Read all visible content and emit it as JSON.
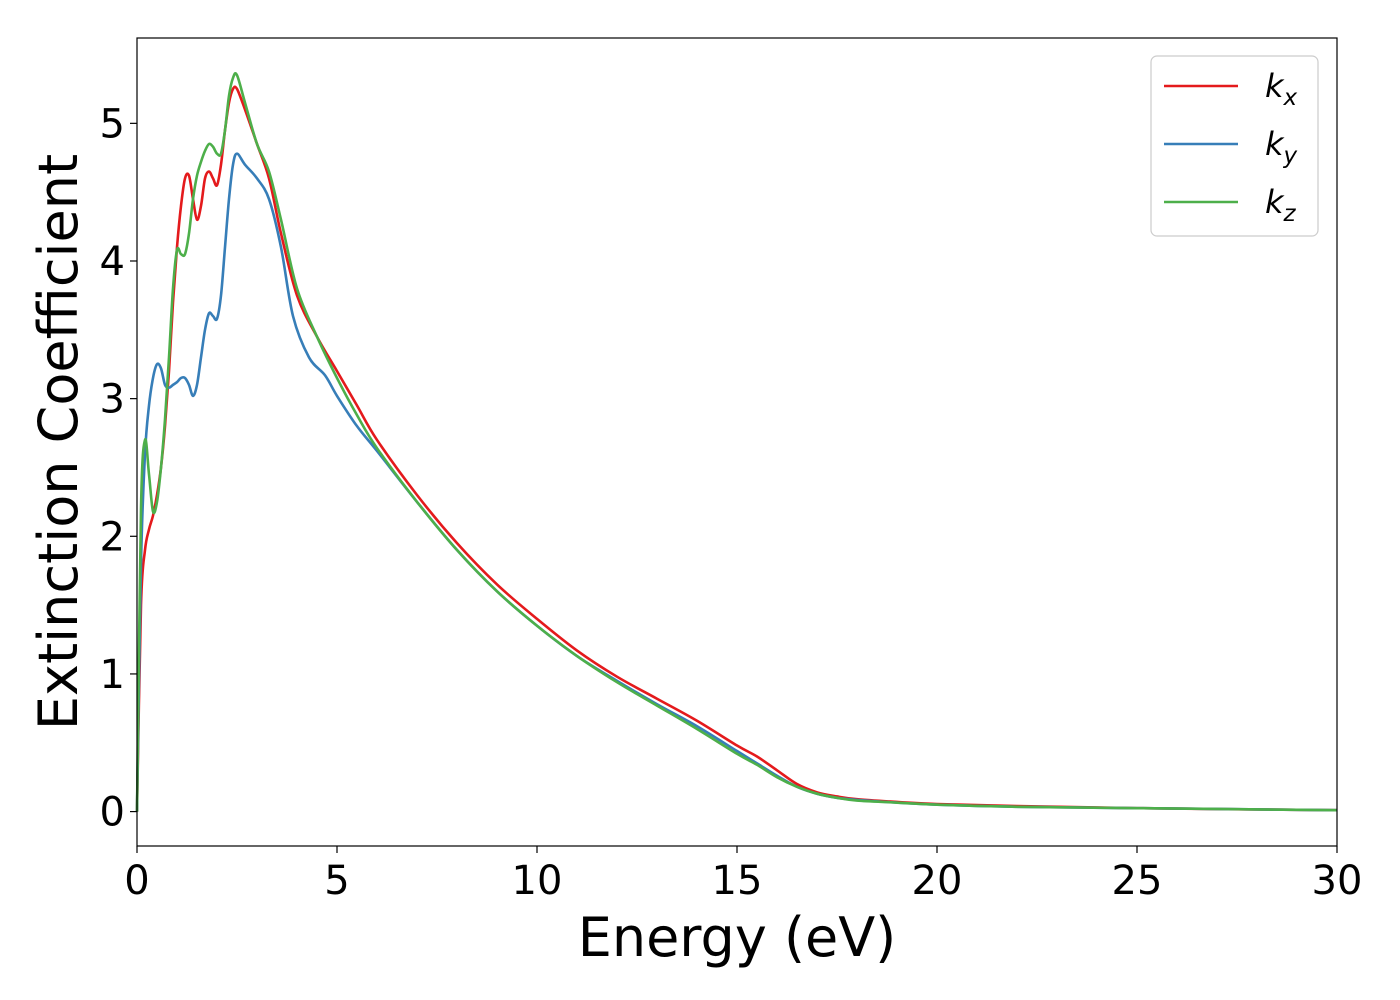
{
  "chart_data": {
    "type": "line",
    "title": "",
    "xlabel": "Energy (eV)",
    "ylabel": "Extinction Coefficient",
    "xlim": [
      0,
      30
    ],
    "ylim": [
      -0.25,
      5.62
    ],
    "xticks": [
      0,
      5,
      10,
      15,
      20,
      25,
      30
    ],
    "yticks": [
      0,
      1,
      2,
      3,
      4,
      5
    ],
    "grid": false,
    "legend_position": "top-right",
    "series": [
      {
        "name": "k",
        "subscript": "x",
        "color": "#e41a1c",
        "points": [
          [
            0,
            0
          ],
          [
            0.1,
            1.5
          ],
          [
            0.2,
            1.9
          ],
          [
            0.3,
            2.05
          ],
          [
            0.4,
            2.15
          ],
          [
            0.5,
            2.3
          ],
          [
            0.6,
            2.5
          ],
          [
            0.7,
            2.8
          ],
          [
            0.8,
            3.2
          ],
          [
            0.9,
            3.7
          ],
          [
            1.0,
            4.1
          ],
          [
            1.1,
            4.4
          ],
          [
            1.2,
            4.6
          ],
          [
            1.3,
            4.62
          ],
          [
            1.4,
            4.45
          ],
          [
            1.5,
            4.3
          ],
          [
            1.6,
            4.4
          ],
          [
            1.7,
            4.6
          ],
          [
            1.8,
            4.65
          ],
          [
            1.9,
            4.6
          ],
          [
            2.0,
            4.55
          ],
          [
            2.1,
            4.7
          ],
          [
            2.2,
            4.95
          ],
          [
            2.3,
            5.15
          ],
          [
            2.4,
            5.25
          ],
          [
            2.5,
            5.25
          ],
          [
            2.7,
            5.1
          ],
          [
            3.0,
            4.85
          ],
          [
            3.3,
            4.6
          ],
          [
            3.6,
            4.2
          ],
          [
            4.0,
            3.75
          ],
          [
            4.5,
            3.45
          ],
          [
            5.0,
            3.2
          ],
          [
            5.5,
            2.95
          ],
          [
            6.0,
            2.7
          ],
          [
            7.0,
            2.3
          ],
          [
            8.0,
            1.95
          ],
          [
            9.0,
            1.65
          ],
          [
            10.0,
            1.4
          ],
          [
            11.0,
            1.17
          ],
          [
            12.0,
            0.98
          ],
          [
            13.0,
            0.82
          ],
          [
            14.0,
            0.66
          ],
          [
            15.0,
            0.48
          ],
          [
            15.5,
            0.4
          ],
          [
            16.0,
            0.3
          ],
          [
            16.5,
            0.2
          ],
          [
            17.0,
            0.14
          ],
          [
            17.5,
            0.11
          ],
          [
            18.0,
            0.09
          ],
          [
            19.0,
            0.07
          ],
          [
            20.0,
            0.055
          ],
          [
            22.0,
            0.04
          ],
          [
            25.0,
            0.025
          ],
          [
            30.0,
            0.01
          ]
        ]
      },
      {
        "name": "k",
        "subscript": "y",
        "color": "#377eb8",
        "points": [
          [
            0,
            0
          ],
          [
            0.1,
            1.8
          ],
          [
            0.2,
            2.6
          ],
          [
            0.3,
            2.95
          ],
          [
            0.4,
            3.15
          ],
          [
            0.5,
            3.25
          ],
          [
            0.6,
            3.22
          ],
          [
            0.7,
            3.1
          ],
          [
            0.8,
            3.08
          ],
          [
            0.9,
            3.1
          ],
          [
            1.0,
            3.12
          ],
          [
            1.1,
            3.15
          ],
          [
            1.2,
            3.15
          ],
          [
            1.3,
            3.1
          ],
          [
            1.4,
            3.02
          ],
          [
            1.5,
            3.1
          ],
          [
            1.6,
            3.3
          ],
          [
            1.7,
            3.5
          ],
          [
            1.8,
            3.62
          ],
          [
            1.9,
            3.6
          ],
          [
            2.0,
            3.58
          ],
          [
            2.1,
            3.75
          ],
          [
            2.2,
            4.1
          ],
          [
            2.3,
            4.45
          ],
          [
            2.4,
            4.7
          ],
          [
            2.5,
            4.78
          ],
          [
            2.7,
            4.7
          ],
          [
            3.0,
            4.6
          ],
          [
            3.3,
            4.45
          ],
          [
            3.6,
            4.1
          ],
          [
            3.9,
            3.6
          ],
          [
            4.3,
            3.3
          ],
          [
            4.7,
            3.17
          ],
          [
            5.0,
            3.02
          ],
          [
            5.5,
            2.8
          ],
          [
            6.0,
            2.62
          ],
          [
            7.0,
            2.25
          ],
          [
            8.0,
            1.9
          ],
          [
            9.0,
            1.6
          ],
          [
            10.0,
            1.35
          ],
          [
            11.0,
            1.13
          ],
          [
            12.0,
            0.95
          ],
          [
            13.0,
            0.78
          ],
          [
            14.0,
            0.62
          ],
          [
            15.0,
            0.44
          ],
          [
            15.5,
            0.35
          ],
          [
            16.0,
            0.26
          ],
          [
            16.5,
            0.18
          ],
          [
            17.0,
            0.13
          ],
          [
            17.5,
            0.1
          ],
          [
            18.0,
            0.085
          ],
          [
            19.0,
            0.065
          ],
          [
            20.0,
            0.05
          ],
          [
            22.0,
            0.035
          ],
          [
            25.0,
            0.025
          ],
          [
            30.0,
            0.01
          ]
        ]
      },
      {
        "name": "k",
        "subscript": "z",
        "color": "#4daf4a",
        "points": [
          [
            0,
            0
          ],
          [
            0.1,
            2.2
          ],
          [
            0.2,
            2.7
          ],
          [
            0.3,
            2.45
          ],
          [
            0.4,
            2.18
          ],
          [
            0.5,
            2.25
          ],
          [
            0.6,
            2.5
          ],
          [
            0.7,
            2.85
          ],
          [
            0.8,
            3.3
          ],
          [
            0.9,
            3.8
          ],
          [
            1.0,
            4.08
          ],
          [
            1.1,
            4.05
          ],
          [
            1.2,
            4.05
          ],
          [
            1.3,
            4.2
          ],
          [
            1.4,
            4.45
          ],
          [
            1.5,
            4.62
          ],
          [
            1.6,
            4.72
          ],
          [
            1.7,
            4.8
          ],
          [
            1.8,
            4.85
          ],
          [
            1.9,
            4.83
          ],
          [
            2.0,
            4.78
          ],
          [
            2.1,
            4.78
          ],
          [
            2.2,
            4.95
          ],
          [
            2.3,
            5.2
          ],
          [
            2.4,
            5.33
          ],
          [
            2.5,
            5.35
          ],
          [
            2.7,
            5.15
          ],
          [
            3.0,
            4.85
          ],
          [
            3.3,
            4.65
          ],
          [
            3.6,
            4.3
          ],
          [
            4.0,
            3.8
          ],
          [
            4.5,
            3.45
          ],
          [
            5.0,
            3.15
          ],
          [
            5.5,
            2.88
          ],
          [
            6.0,
            2.64
          ],
          [
            7.0,
            2.25
          ],
          [
            8.0,
            1.9
          ],
          [
            9.0,
            1.6
          ],
          [
            10.0,
            1.35
          ],
          [
            11.0,
            1.13
          ],
          [
            12.0,
            0.94
          ],
          [
            13.0,
            0.77
          ],
          [
            14.0,
            0.6
          ],
          [
            15.0,
            0.42
          ],
          [
            15.5,
            0.34
          ],
          [
            16.0,
            0.25
          ],
          [
            16.5,
            0.18
          ],
          [
            17.0,
            0.13
          ],
          [
            17.5,
            0.1
          ],
          [
            18.0,
            0.08
          ],
          [
            19.0,
            0.065
          ],
          [
            20.0,
            0.05
          ],
          [
            22.0,
            0.035
          ],
          [
            25.0,
            0.025
          ],
          [
            30.0,
            0.01
          ]
        ]
      }
    ]
  }
}
